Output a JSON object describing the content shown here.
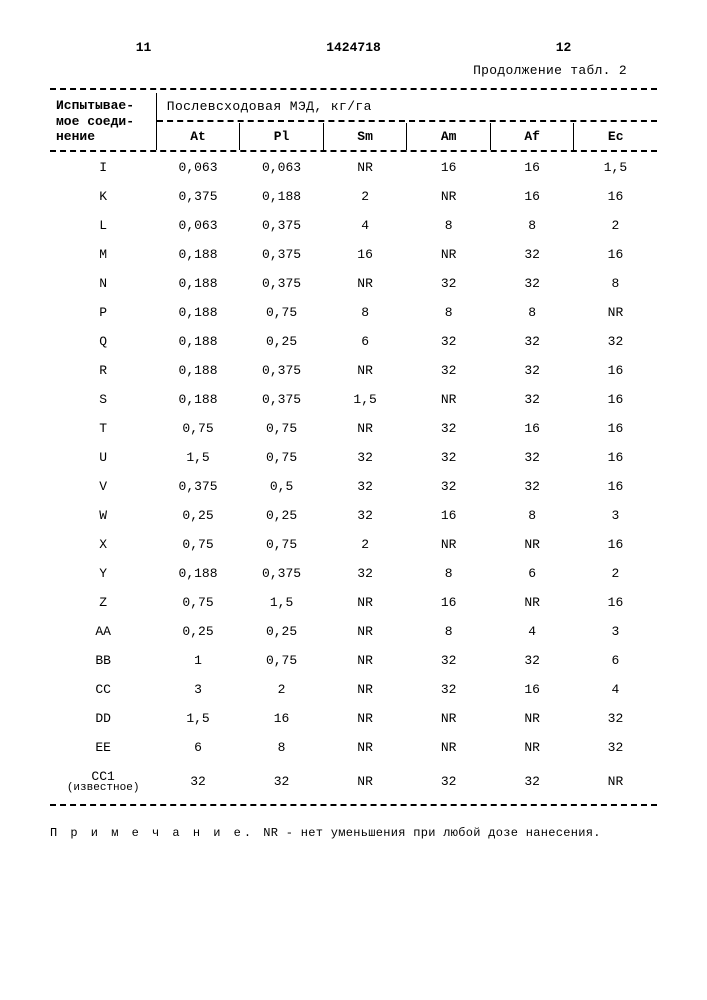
{
  "header": {
    "left_page": "11",
    "doc_number": "1424718",
    "right_page": "12",
    "continuation": "Продолжение табл. 2"
  },
  "table": {
    "row_label_header": "Испытывае-\nмое соеди-\nнение",
    "group_header": "Послевсходовая МЭД, кг/га",
    "columns": [
      "At",
      "Pl",
      "Sm",
      "Am",
      "Af",
      "Ec"
    ],
    "rows": [
      {
        "id": "I",
        "vals": [
          "0,063",
          "0,063",
          "NR",
          "16",
          "16",
          "1,5"
        ]
      },
      {
        "id": "K",
        "vals": [
          "0,375",
          "0,188",
          "2",
          "NR",
          "16",
          "16"
        ]
      },
      {
        "id": "L",
        "vals": [
          "0,063",
          "0,375",
          "4",
          "8",
          "8",
          "2"
        ]
      },
      {
        "id": "M",
        "vals": [
          "0,188",
          "0,375",
          "16",
          "NR",
          "32",
          "16"
        ]
      },
      {
        "id": "N",
        "vals": [
          "0,188",
          "0,375",
          "NR",
          "32",
          "32",
          "8"
        ]
      },
      {
        "id": "P",
        "vals": [
          "0,188",
          "0,75",
          "8",
          "8",
          "8",
          "NR"
        ]
      },
      {
        "id": "Q",
        "vals": [
          "0,188",
          "0,25",
          "6",
          "32",
          "32",
          "32"
        ]
      },
      {
        "id": "R",
        "vals": [
          "0,188",
          "0,375",
          "NR",
          "32",
          "32",
          "16"
        ]
      },
      {
        "id": "S",
        "vals": [
          "0,188",
          "0,375",
          "1,5",
          "NR",
          "32",
          "16"
        ]
      },
      {
        "id": "T",
        "vals": [
          "0,75",
          "0,75",
          "NR",
          "32",
          "16",
          "16"
        ]
      },
      {
        "id": "U",
        "vals": [
          "1,5",
          "0,75",
          "32",
          "32",
          "32",
          "16"
        ]
      },
      {
        "id": "V",
        "vals": [
          "0,375",
          "0,5",
          "32",
          "32",
          "32",
          "16"
        ]
      },
      {
        "id": "W",
        "vals": [
          "0,25",
          "0,25",
          "32",
          "16",
          "8",
          "3"
        ]
      },
      {
        "id": "X",
        "vals": [
          "0,75",
          "0,75",
          "2",
          "NR",
          "NR",
          "16"
        ]
      },
      {
        "id": "Y",
        "vals": [
          "0,188",
          "0,375",
          "32",
          "8",
          "6",
          "2"
        ]
      },
      {
        "id": "Z",
        "vals": [
          "0,75",
          "1,5",
          "NR",
          "16",
          "NR",
          "16"
        ]
      },
      {
        "id": "AA",
        "vals": [
          "0,25",
          "0,25",
          "NR",
          "8",
          "4",
          "3"
        ]
      },
      {
        "id": "BB",
        "vals": [
          "1",
          "0,75",
          "NR",
          "32",
          "32",
          "6"
        ]
      },
      {
        "id": "CC",
        "vals": [
          "3",
          "2",
          "NR",
          "32",
          "16",
          "4"
        ]
      },
      {
        "id": "DD",
        "vals": [
          "1,5",
          "16",
          "NR",
          "NR",
          "NR",
          "32"
        ]
      },
      {
        "id": "EE",
        "vals": [
          "6",
          "8",
          "NR",
          "NR",
          "NR",
          "32"
        ]
      },
      {
        "id": "CC1",
        "sub": "(известное)",
        "vals": [
          "32",
          "32",
          "NR",
          "32",
          "32",
          "NR"
        ]
      }
    ]
  },
  "footer": {
    "lead": "П р и м е ч а н и е.",
    "rest": "NR - нет уменьшения при любой дозе нанесения."
  },
  "style": {
    "font_family": "Courier New",
    "font_size_body": 13,
    "font_size_footer": 12,
    "background": "#ffffff",
    "text_color": "#000000",
    "dash_color": "#000000"
  }
}
